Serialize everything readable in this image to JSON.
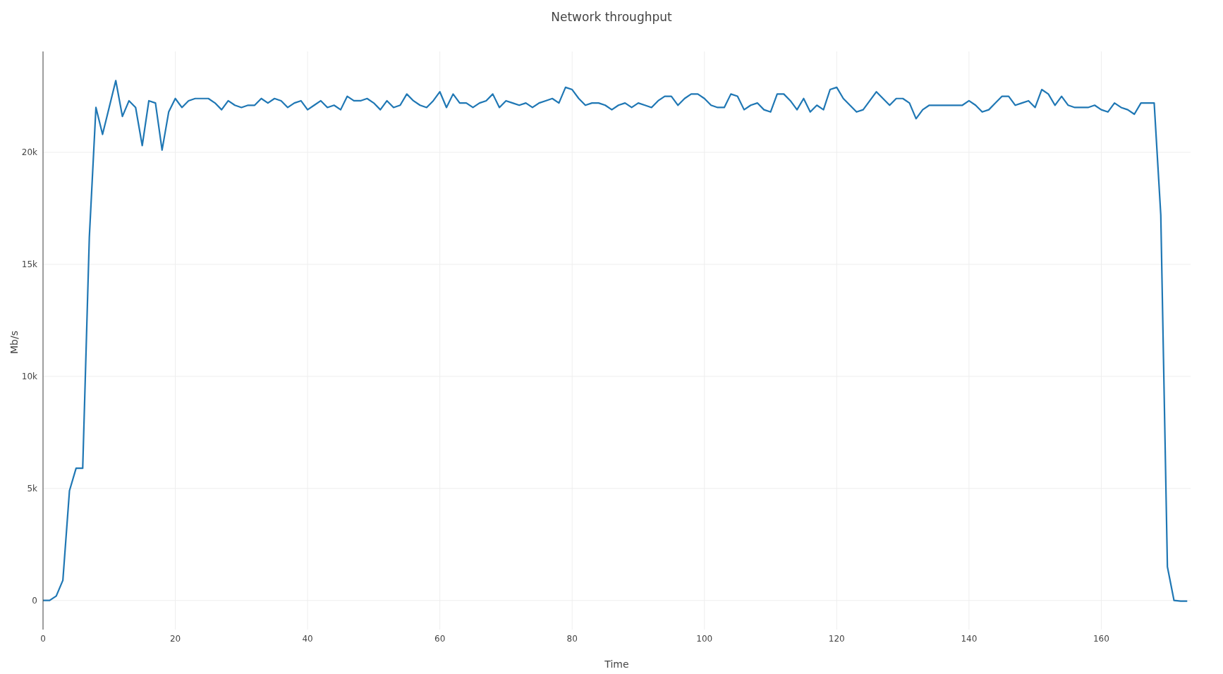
{
  "chart_data": {
    "type": "line",
    "title": "Network throughput",
    "xlabel": "Time",
    "ylabel": "Mb/s",
    "x": [
      0,
      1,
      2,
      3,
      4,
      5,
      6,
      7,
      8,
      9,
      10,
      11,
      12,
      13,
      14,
      15,
      16,
      17,
      18,
      19,
      20,
      21,
      22,
      23,
      24,
      25,
      26,
      27,
      28,
      29,
      30,
      31,
      32,
      33,
      34,
      35,
      36,
      37,
      38,
      39,
      40,
      41,
      42,
      43,
      44,
      45,
      46,
      47,
      48,
      49,
      50,
      51,
      52,
      53,
      54,
      55,
      56,
      57,
      58,
      59,
      60,
      61,
      62,
      63,
      64,
      65,
      66,
      67,
      68,
      69,
      70,
      71,
      72,
      73,
      74,
      75,
      76,
      77,
      78,
      79,
      80,
      81,
      82,
      83,
      84,
      85,
      86,
      87,
      88,
      89,
      90,
      91,
      92,
      93,
      94,
      95,
      96,
      97,
      98,
      99,
      100,
      101,
      102,
      103,
      104,
      105,
      106,
      107,
      108,
      109,
      110,
      111,
      112,
      113,
      114,
      115,
      116,
      117,
      118,
      119,
      120,
      121,
      122,
      123,
      124,
      125,
      126,
      127,
      128,
      129,
      130,
      131,
      132,
      133,
      134,
      135,
      136,
      137,
      138,
      139,
      140,
      141,
      142,
      143,
      144,
      145,
      146,
      147,
      148,
      149,
      150,
      151,
      152,
      153,
      154,
      155,
      156,
      157,
      158,
      159,
      160,
      161,
      162,
      163,
      164,
      165,
      166,
      167,
      168,
      169,
      170,
      171,
      172,
      173
    ],
    "series": [
      {
        "color": "#1f77b4",
        "values": [
          0,
          0,
          200,
          900,
          4900,
          5900,
          5900,
          16200,
          22000,
          20800,
          22000,
          23200,
          21600,
          22300,
          22000,
          20300,
          22300,
          22200,
          20100,
          21800,
          22400,
          22000,
          22300,
          22400,
          22400,
          22400,
          22200,
          21900,
          22300,
          22100,
          22000,
          22100,
          22100,
          22400,
          22200,
          22400,
          22300,
          22000,
          22200,
          22300,
          21900,
          22100,
          22300,
          22000,
          22100,
          21900,
          22500,
          22300,
          22300,
          22400,
          22200,
          21900,
          22300,
          22000,
          22100,
          22600,
          22300,
          22100,
          22000,
          22300,
          22700,
          22000,
          22600,
          22200,
          22200,
          22000,
          22200,
          22300,
          22600,
          22000,
          22300,
          22200,
          22100,
          22200,
          22000,
          22200,
          22300,
          22400,
          22200,
          22900,
          22800,
          22400,
          22100,
          22200,
          22200,
          22100,
          21900,
          22100,
          22200,
          22000,
          22200,
          22100,
          22000,
          22300,
          22500,
          22500,
          22100,
          22400,
          22600,
          22600,
          22400,
          22100,
          22000,
          22000,
          22600,
          22500,
          21900,
          22100,
          22200,
          21900,
          21800,
          22600,
          22600,
          22300,
          21900,
          22400,
          21800,
          22100,
          21900,
          22800,
          22900,
          22400,
          22100,
          21800,
          21900,
          22300,
          22700,
          22400,
          22100,
          22400,
          22400,
          22200,
          21500,
          21900,
          22100,
          22100,
          22100,
          22100,
          22100,
          22100,
          22300,
          22100,
          21800,
          21900,
          22200,
          22500,
          22500,
          22100,
          22200,
          22300,
          22000,
          22800,
          22600,
          22100,
          22500,
          22100,
          22000,
          22000,
          22000,
          22100,
          21900,
          21800,
          22200,
          22000,
          21900,
          21700,
          22200,
          22200,
          22200,
          17200,
          1500,
          0,
          -30,
          -30
        ]
      }
    ],
    "xlim": [
      0,
      173.5
    ],
    "ylim": [
      -1300,
      24500
    ],
    "xticks": [
      0,
      20,
      40,
      60,
      80,
      100,
      120,
      140,
      160
    ],
    "yticks": [
      0,
      {
        "value": 5000,
        "label": "5k"
      },
      {
        "value": 10000,
        "label": "10k"
      },
      {
        "value": 15000,
        "label": "15k"
      },
      {
        "value": 20000,
        "label": "20k"
      }
    ],
    "grid": true,
    "legend": false,
    "marker": "none",
    "line_style": "solid"
  }
}
